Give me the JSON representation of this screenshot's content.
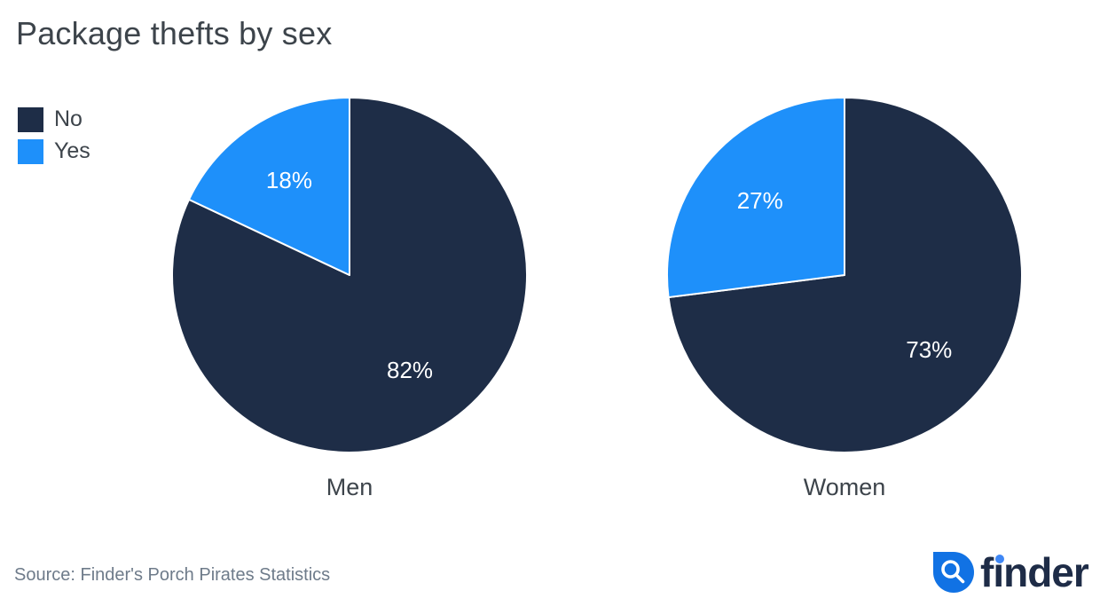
{
  "header": {
    "title": "Package thefts by sex"
  },
  "chart_data": {
    "type": "pie",
    "title": "Package thefts by sex",
    "legend_position": "top-left",
    "direction": "clockwise",
    "start_angle_deg": 0,
    "value_suffix": "%",
    "legend": [
      {
        "label": "No",
        "color": "#1e2d47"
      },
      {
        "label": "Yes",
        "color": "#1e90fa"
      }
    ],
    "pies": [
      {
        "category": "Men",
        "slices": [
          {
            "name": "No",
            "value": 82
          },
          {
            "name": "Yes",
            "value": 18
          }
        ]
      },
      {
        "category": "Women",
        "slices": [
          {
            "name": "No",
            "value": 73
          },
          {
            "name": "Yes",
            "value": 27
          }
        ]
      }
    ]
  },
  "footer": {
    "source": "Source: Finder's Porch Pirates Statistics",
    "logo_text": "finder"
  },
  "colors": {
    "navy": "#1e2d47",
    "blue": "#1e90fa",
    "logo_navy": "#1e2c47",
    "droplet_blue": "#1172e4",
    "i_dot_blue": "#3f87f5",
    "text_dark": "#3d444b",
    "text_muted": "#6e7b8a",
    "slice_border": "#ffffff"
  }
}
